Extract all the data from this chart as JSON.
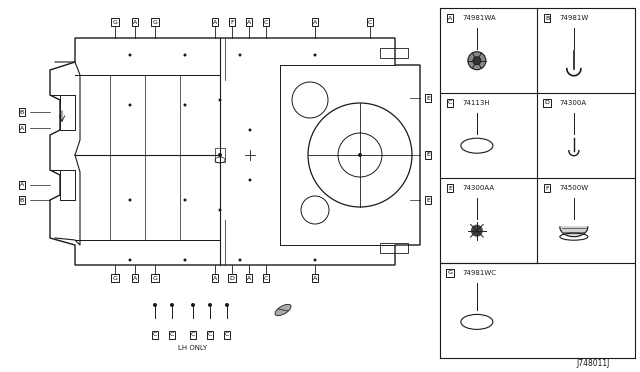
{
  "bg_color": "#ffffff",
  "line_color": "#1a1a1a",
  "diagram_id": "J748011J",
  "lh_only_label": "LH ONLY",
  "parts": [
    {
      "id": "A",
      "code": "74981WA",
      "shape": "grommet_snap"
    },
    {
      "id": "B",
      "code": "74981W",
      "shape": "hook_j"
    },
    {
      "id": "C",
      "code": "74113H",
      "shape": "oval_thin"
    },
    {
      "id": "D",
      "code": "74300A",
      "shape": "hook_j_small"
    },
    {
      "id": "E",
      "code": "74300AA",
      "shape": "grommet_star"
    },
    {
      "id": "F",
      "code": "74500W",
      "shape": "dome_grommet"
    },
    {
      "id": "G",
      "code": "74981WC",
      "shape": "oval_thin"
    }
  ]
}
